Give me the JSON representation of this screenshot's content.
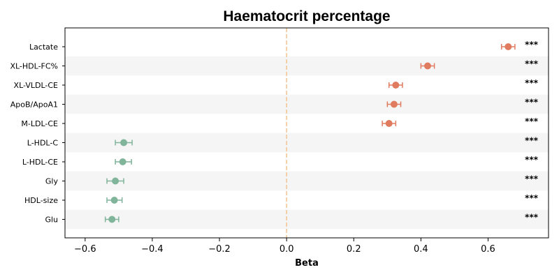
{
  "chart_data": {
    "type": "scatter",
    "title": "Haematocrit percentage",
    "xlabel": "Beta",
    "ylabel": "",
    "xlim": [
      -0.66,
      0.78
    ],
    "xticks": [
      -0.6,
      -0.4,
      -0.2,
      0.0,
      0.2,
      0.4,
      0.6
    ],
    "xtick_labels": [
      "−0.6",
      "−0.4",
      "−0.2",
      "0.0",
      "0.2",
      "0.4",
      "0.6"
    ],
    "reference_line": 0.0,
    "grid": false,
    "row_banding": true,
    "colors": {
      "positive": "#e07b5f",
      "negative": "#80b49b",
      "reference": "#f2c48f",
      "band": "#f5f5f5"
    },
    "rows": [
      {
        "label": "Lactate",
        "beta": 0.66,
        "lo": 0.64,
        "hi": 0.68,
        "sig": "***"
      },
      {
        "label": "XL-HDL-FC%",
        "beta": 0.42,
        "lo": 0.4,
        "hi": 0.44,
        "sig": "***"
      },
      {
        "label": "XL-VLDL-CE",
        "beta": 0.325,
        "lo": 0.305,
        "hi": 0.345,
        "sig": "***"
      },
      {
        "label": "ApoB/ApoA1",
        "beta": 0.32,
        "lo": 0.3,
        "hi": 0.34,
        "sig": "***"
      },
      {
        "label": "M-LDL-CE",
        "beta": 0.305,
        "lo": 0.285,
        "hi": 0.325,
        "sig": "***"
      },
      {
        "label": "L-HDL-C",
        "beta": -0.485,
        "lo": -0.51,
        "hi": -0.46,
        "sig": "***"
      },
      {
        "label": "L-HDL-CE",
        "beta": -0.488,
        "lo": -0.51,
        "hi": -0.462,
        "sig": "***"
      },
      {
        "label": "Gly",
        "beta": -0.51,
        "lo": -0.535,
        "hi": -0.485,
        "sig": "***"
      },
      {
        "label": "HDL-size",
        "beta": -0.513,
        "lo": -0.535,
        "hi": -0.49,
        "sig": "***"
      },
      {
        "label": "Glu",
        "beta": -0.52,
        "lo": -0.54,
        "hi": -0.5,
        "sig": "***"
      }
    ]
  }
}
